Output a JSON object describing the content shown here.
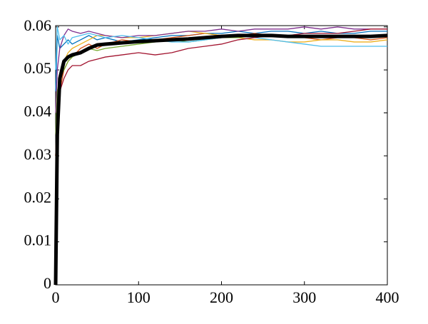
{
  "chart_data": {
    "type": "line",
    "x": [
      0,
      2,
      5,
      10,
      15,
      20,
      30,
      40,
      50,
      60,
      80,
      100,
      120,
      140,
      160,
      180,
      200,
      220,
      240,
      260,
      280,
      300,
      320,
      340,
      360,
      380,
      400
    ],
    "series": [
      {
        "color": "#0072BD",
        "values": [
          0.045,
          0.058,
          0.055,
          0.056,
          0.057,
          0.056,
          0.057,
          0.058,
          0.057,
          0.0575,
          0.0565,
          0.057,
          0.0575,
          0.058,
          0.058,
          0.0585,
          0.0585,
          0.059,
          0.0585,
          0.059,
          0.059,
          0.0585,
          0.059,
          0.0585,
          0.0585,
          0.059,
          0.059
        ]
      },
      {
        "color": "#D95319",
        "values": [
          0.03,
          0.04,
          0.045,
          0.05,
          0.052,
          0.053,
          0.055,
          0.056,
          0.055,
          0.056,
          0.057,
          0.0565,
          0.057,
          0.0575,
          0.058,
          0.0585,
          0.058,
          0.058,
          0.0585,
          0.058,
          0.058,
          0.0575,
          0.057,
          0.0575,
          0.0575,
          0.057,
          0.0575
        ]
      },
      {
        "color": "#EDB120",
        "values": [
          0.03,
          0.042,
          0.048,
          0.052,
          0.054,
          0.055,
          0.056,
          0.057,
          0.058,
          0.058,
          0.0575,
          0.0575,
          0.058,
          0.0585,
          0.059,
          0.0585,
          0.058,
          0.0575,
          0.057,
          0.057,
          0.0565,
          0.0565,
          0.057,
          0.057,
          0.0565,
          0.0565,
          0.057
        ]
      },
      {
        "color": "#7E2F8E",
        "values": [
          0.04,
          0.05,
          0.055,
          0.058,
          0.0595,
          0.059,
          0.0585,
          0.059,
          0.0585,
          0.058,
          0.0575,
          0.058,
          0.058,
          0.0585,
          0.059,
          0.059,
          0.0595,
          0.059,
          0.0595,
          0.0595,
          0.0595,
          0.06,
          0.0595,
          0.06,
          0.0595,
          0.0595,
          0.0595
        ]
      },
      {
        "color": "#77AC30",
        "values": [
          0.035,
          0.045,
          0.048,
          0.05,
          0.052,
          0.053,
          0.054,
          0.055,
          0.0545,
          0.055,
          0.0555,
          0.056,
          0.0565,
          0.057,
          0.0565,
          0.057,
          0.0575,
          0.0575,
          0.058,
          0.058,
          0.058,
          0.0575,
          0.058,
          0.058,
          0.0575,
          0.058,
          0.058
        ]
      },
      {
        "color": "#4DBEEE",
        "values": [
          0.05,
          0.06,
          0.057,
          0.058,
          0.056,
          0.0575,
          0.058,
          0.0585,
          0.058,
          0.0575,
          0.058,
          0.0575,
          0.057,
          0.0565,
          0.0565,
          0.057,
          0.0575,
          0.058,
          0.0575,
          0.057,
          0.0565,
          0.056,
          0.0555,
          0.0555,
          0.0555,
          0.0555,
          0.0555
        ]
      },
      {
        "color": "#A2142F",
        "values": [
          0.03,
          0.04,
          0.045,
          0.048,
          0.05,
          0.051,
          0.051,
          0.052,
          0.0525,
          0.053,
          0.0535,
          0.054,
          0.0535,
          0.054,
          0.055,
          0.0555,
          0.056,
          0.057,
          0.0575,
          0.058,
          0.058,
          0.0585,
          0.0585,
          0.0585,
          0.059,
          0.0595,
          0.0595
        ]
      },
      {
        "color": "#000000",
        "values": [
          0,
          0.035,
          0.048,
          0.052,
          0.053,
          0.0535,
          0.054,
          0.055,
          0.0558,
          0.056,
          0.0563,
          0.0566,
          0.0568,
          0.057,
          0.0572,
          0.0575,
          0.0578,
          0.058,
          0.058,
          0.058,
          0.0578,
          0.0578,
          0.0578,
          0.0578,
          0.0578,
          0.0578,
          0.058
        ]
      }
    ],
    "xlim": [
      0,
      400
    ],
    "xticks": [
      0,
      100,
      200,
      300,
      400
    ],
    "ylim": [
      0,
      0.0603
    ],
    "yticks": [
      0,
      0.01,
      0.02,
      0.03,
      0.04,
      0.05,
      0.06
    ]
  }
}
